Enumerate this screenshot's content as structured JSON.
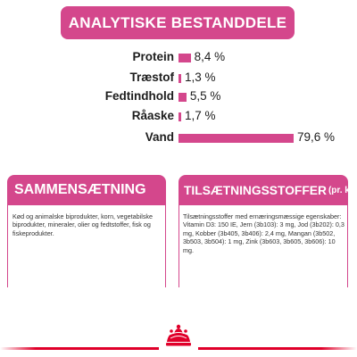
{
  "header": {
    "title": "ANALYTISKE BESTANDDELE"
  },
  "chart_data": {
    "type": "bar",
    "categories": [
      "Protein",
      "Træstof",
      "Fedtindhold",
      "Råaske",
      "Vand"
    ],
    "values": [
      8.4,
      1.3,
      5.5,
      1.7,
      79.6
    ],
    "value_labels": [
      "8,4 %",
      "1,3 %",
      "5,5 %",
      "1,7 %",
      "79,6 %"
    ],
    "title": "ANALYTISKE BESTANDDELE",
    "xlabel": "",
    "ylabel": "",
    "xlim": [
      0,
      100
    ],
    "bar_color": "#d4478c"
  },
  "composition": {
    "title": "SAMMENSÆTNING",
    "text": "Kød og animalske biprodukter, korn, vegetabilske biprodukter, mineraler, olier og fedtstoffer, fisk og fiskeprodukter."
  },
  "additives": {
    "title": "TILSÆTNINGSSTOFFER",
    "unit": "(pr. kg)",
    "text": "Tilsætningsstoffer med ernæringsmæssige egenskaber: Vitamin D3: 150 IE, Jern (3b103): 3 mg, Jod (3b202): 0,3 mg, Kobber (3b405, 3b406): 2,4 mg, Mangan (3b502, 3b503, 3b504): 1 mg, Zink (3b603, 3b605, 3b606): 10 mg."
  },
  "colors": {
    "accent": "#d4478c",
    "brand_red": "#e0002a"
  },
  "logo": {
    "icon": "royal-canin-crown-icon"
  }
}
